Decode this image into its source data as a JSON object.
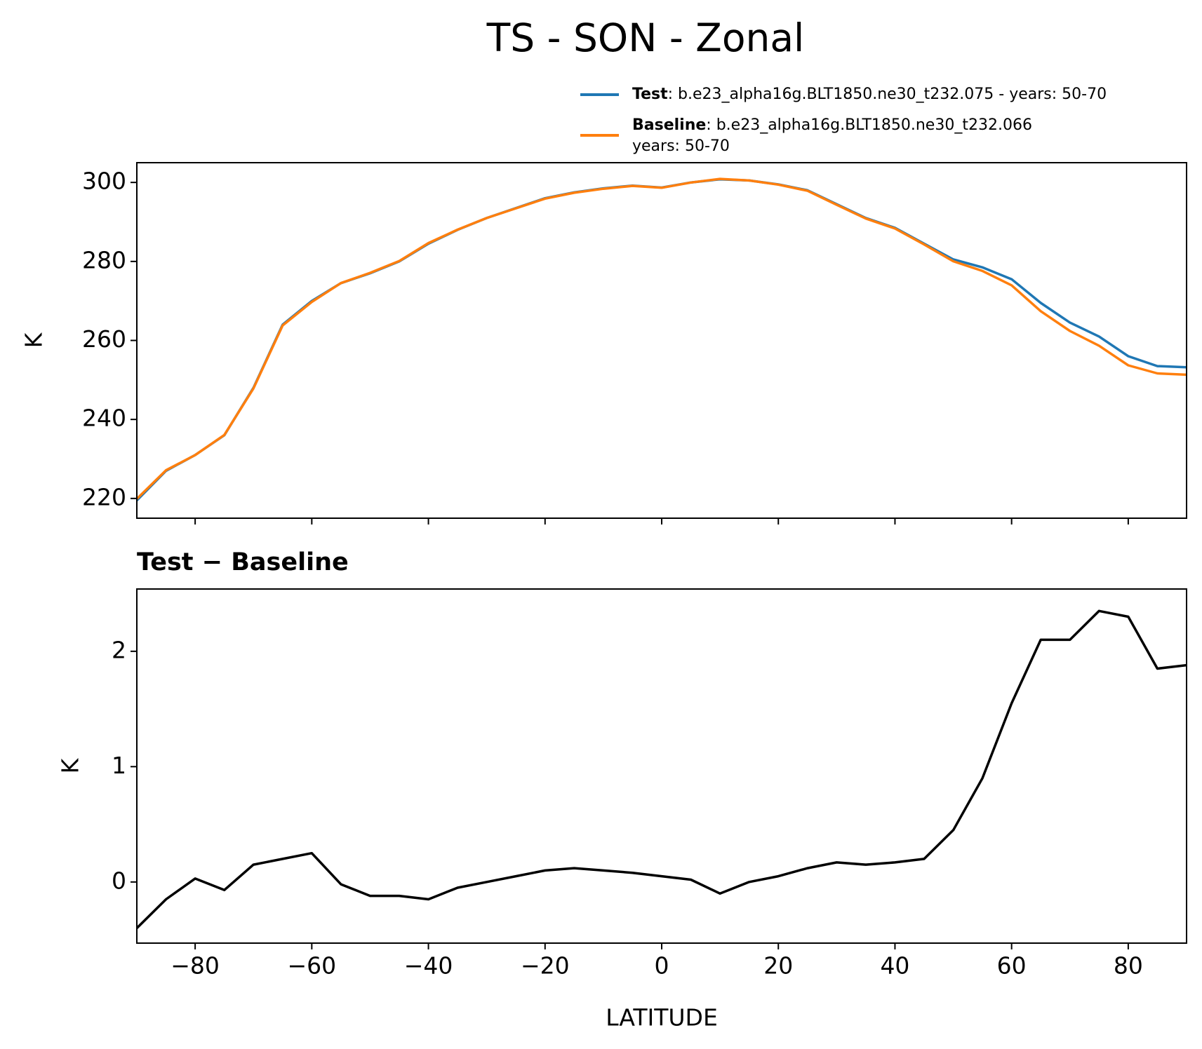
{
  "title": "TS - SON - Zonal",
  "chart_data": [
    {
      "type": "line",
      "y_label": "K",
      "x": [
        -90,
        -85,
        -80,
        -75,
        -70,
        -65,
        -60,
        -55,
        -50,
        -45,
        -40,
        -35,
        -30,
        -25,
        -20,
        -15,
        -10,
        -5,
        0,
        5,
        10,
        15,
        20,
        25,
        30,
        35,
        40,
        45,
        50,
        55,
        60,
        65,
        70,
        75,
        80,
        85,
        90
      ],
      "series": [
        {
          "name": "Test",
          "label": [
            ": b.e23_alpha16g.BLT1850.ne30_t232.075 - years: 50-70"
          ],
          "color": "#1f77b4",
          "values": [
            219.5,
            227,
            231,
            236,
            248,
            264,
            270,
            274.5,
            277,
            280,
            284.5,
            288,
            291,
            293.5,
            296,
            297.5,
            298.5,
            299.2,
            298.7,
            300,
            300.8,
            300.5,
            299.5,
            298,
            294.5,
            291,
            288.5,
            284.5,
            280.5,
            278.5,
            275.5,
            269.5,
            264.5,
            261,
            256,
            253.5,
            253.2
          ]
        },
        {
          "name": "Baseline",
          "label": [
            ": b.e23_alpha16g.BLT1850.ne30_t232.066",
            "years: 50-70"
          ],
          "color": "#ff7f0e",
          "values": [
            219.9,
            227.15,
            230.97,
            236.07,
            247.85,
            263.8,
            269.75,
            274.52,
            277.12,
            280.12,
            284.65,
            288.05,
            291,
            293.45,
            295.9,
            297.38,
            298.4,
            299.12,
            298.65,
            299.98,
            300.9,
            300.5,
            299.45,
            297.88,
            294.33,
            290.85,
            288.33,
            284.3,
            280.05,
            277.6,
            273.95,
            267.4,
            262.4,
            258.65,
            253.7,
            251.65,
            251.32
          ]
        }
      ],
      "xlim": [
        -90,
        90
      ],
      "xticks": [
        -80,
        -60,
        -40,
        -20,
        0,
        20,
        40,
        60,
        80
      ],
      "ylim": [
        215,
        305
      ],
      "yticks": [
        220,
        240,
        260,
        280,
        300
      ]
    },
    {
      "type": "line",
      "title": "Test − Baseline",
      "x_label": "LATITUDE",
      "y_label": "K",
      "x": [
        -90,
        -85,
        -80,
        -75,
        -70,
        -65,
        -60,
        -55,
        -50,
        -45,
        -40,
        -35,
        -30,
        -25,
        -20,
        -15,
        -10,
        -5,
        0,
        5,
        10,
        15,
        20,
        25,
        30,
        35,
        40,
        45,
        50,
        55,
        60,
        65,
        70,
        75,
        80,
        85,
        90
      ],
      "series": [
        {
          "name": "Test − Baseline",
          "color": "#000000",
          "values": [
            -0.4,
            -0.15,
            0.03,
            -0.07,
            0.15,
            0.2,
            0.25,
            -0.02,
            -0.12,
            -0.12,
            -0.15,
            -0.05,
            0.0,
            0.05,
            0.1,
            0.12,
            0.1,
            0.08,
            0.05,
            0.02,
            -0.1,
            0.0,
            0.05,
            0.12,
            0.17,
            0.15,
            0.17,
            0.2,
            0.45,
            0.9,
            1.55,
            2.1,
            2.1,
            2.35,
            2.3,
            1.85,
            1.88
          ]
        }
      ],
      "xlim": [
        -90,
        90
      ],
      "xticks": [
        {
          "value": -80,
          "label": "−80"
        },
        {
          "value": -60,
          "label": "−60"
        },
        {
          "value": -40,
          "label": "−40"
        },
        {
          "value": -20,
          "label": "−20"
        },
        0,
        20,
        40,
        60,
        80
      ],
      "ylim": [
        -0.53,
        2.54
      ],
      "yticks": [
        0,
        1,
        2
      ]
    }
  ]
}
